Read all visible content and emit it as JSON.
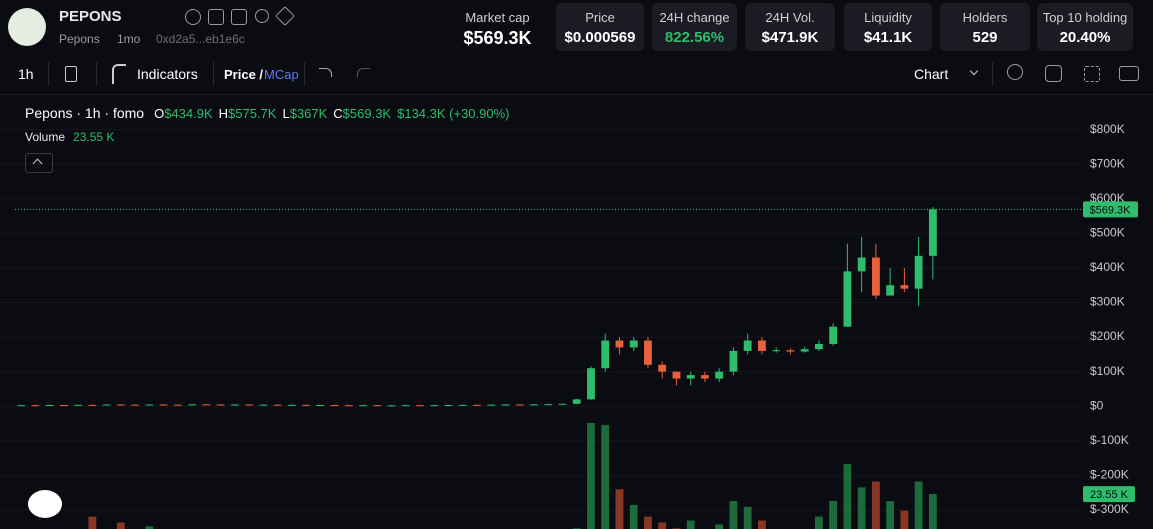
{
  "header": {
    "token": "PEPONS",
    "name": "Pepons",
    "age": "1mo",
    "address": "0xd2a5...eb1e6c",
    "stats": [
      {
        "label": "Market cap",
        "value": "$569.3K"
      },
      {
        "label": "Price",
        "value": "$0.000569"
      },
      {
        "label": "24H change",
        "value": "822.56%"
      },
      {
        "label": "24H Vol.",
        "value": "$471.9K"
      },
      {
        "label": "Liquidity",
        "value": "$41.1K"
      },
      {
        "label": "Holders",
        "value": "529"
      },
      {
        "label": "Top 10 holding",
        "value": "20.40%"
      }
    ]
  },
  "toolbar": {
    "interval": "1h",
    "indicators": "Indicators",
    "price": "Price /",
    "mcap": "MCap",
    "chart": "Chart"
  },
  "chart_data": {
    "type": "candlestick",
    "title": "Pepons · 1h · fomo",
    "readout": [
      {
        "key": "O",
        "value": "$434.9K"
      },
      {
        "key": "H",
        "value": "$575.7K"
      },
      {
        "key": "L",
        "value": "$367K"
      },
      {
        "key": "C",
        "value": "$569.3K"
      }
    ],
    "change": "$134.3K (+30.90%)",
    "volume_title": "Volume",
    "up_color": "#2ebd6b",
    "down_color": "#e8603c",
    "volume_up_color": "#1d6a3a",
    "volume_down_color": "#8a3624",
    "open": [
      2000,
      3000,
      2500,
      3500,
      3000,
      4000,
      3500,
      5000,
      4500,
      4000,
      5000,
      4500,
      4000,
      5500,
      5000,
      4500,
      5000,
      4000,
      4500,
      3500,
      4000,
      3000,
      3500,
      3000,
      2500,
      3000,
      2000,
      2500,
      3000,
      2500,
      3000,
      3500,
      4000,
      3500,
      4500,
      5000,
      4500,
      5500,
      6000,
      7000,
      20000,
      110000,
      190000,
      170000,
      190000,
      120000,
      100000,
      80000,
      90000,
      80000,
      100000,
      160000,
      190000,
      160000,
      162000,
      158000,
      165000,
      180000,
      230000,
      390000,
      430000,
      320000,
      350000,
      340000,
      434900
    ],
    "high": [
      4000,
      4000,
      4500,
      4500,
      5000,
      5000,
      6000,
      6000,
      5500,
      6000,
      6000,
      5500,
      6500,
      6500,
      6000,
      6000,
      6000,
      5500,
      5500,
      5000,
      5000,
      4500,
      4500,
      4000,
      4000,
      4000,
      3500,
      4000,
      4000,
      4000,
      4500,
      5000,
      5000,
      5500,
      6000,
      6000,
      6500,
      7000,
      8000,
      21000,
      115000,
      210000,
      200000,
      200000,
      200000,
      130000,
      100000,
      100000,
      100000,
      110000,
      170000,
      210000,
      200000,
      170000,
      168000,
      172000,
      190000,
      240000,
      470000,
      490000,
      470000,
      400000,
      400000,
      490000,
      575700
    ],
    "low": [
      1000,
      1500,
      1500,
      2000,
      2000,
      2500,
      2500,
      3500,
      3000,
      3000,
      3500,
      3000,
      3000,
      4000,
      3500,
      3500,
      3000,
      3000,
      2500,
      2500,
      2000,
      2000,
      2000,
      1500,
      1500,
      1000,
      1000,
      1500,
      1500,
      1500,
      2000,
      2500,
      2500,
      2500,
      3500,
      3500,
      3500,
      4500,
      5000,
      6000,
      18000,
      100000,
      150000,
      160000,
      110000,
      80000,
      60000,
      60000,
      70000,
      70000,
      90000,
      150000,
      150000,
      155000,
      150000,
      155000,
      160000,
      175000,
      230000,
      330000,
      310000,
      320000,
      330000,
      290000,
      367000
    ],
    "close": [
      3000,
      2500,
      3500,
      3000,
      4000,
      3500,
      5000,
      4500,
      4000,
      5000,
      4500,
      4000,
      5500,
      5000,
      4500,
      5000,
      4000,
      4500,
      3500,
      4000,
      3000,
      3500,
      3000,
      2500,
      3000,
      2000,
      2500,
      3000,
      2500,
      3000,
      3500,
      4000,
      3500,
      4500,
      5000,
      4500,
      5500,
      6000,
      7000,
      20000,
      110000,
      190000,
      170000,
      190000,
      120000,
      100000,
      80000,
      90000,
      80000,
      100000,
      160000,
      190000,
      160000,
      162000,
      158000,
      165000,
      180000,
      230000,
      390000,
      430000,
      320000,
      350000,
      340000,
      434900,
      569300
    ],
    "volume": [
      500,
      800,
      1200,
      600,
      900,
      12000,
      700,
      9000,
      1000,
      7000,
      800,
      600,
      4000,
      900,
      500,
      700,
      600,
      800,
      500,
      2000,
      700,
      600,
      800,
      500,
      700,
      900,
      600,
      800,
      700,
      500,
      600,
      700,
      1000,
      800,
      600,
      900,
      700,
      1200,
      2500,
      6000,
      60000,
      59000,
      26000,
      18000,
      12000,
      9000,
      6000,
      10000,
      5000,
      8000,
      20000,
      17000,
      10000,
      4000,
      3000,
      5000,
      12000,
      20000,
      39000,
      27000,
      30000,
      20000,
      15000,
      30000,
      23550
    ],
    "ylim": [
      -355000,
      900000
    ],
    "yticks": [
      {
        "value": -300000,
        "label": "$-300K"
      },
      {
        "value": -200000,
        "label": "$-200K"
      },
      {
        "value": -100000,
        "label": "$-100K"
      },
      {
        "value": 0,
        "label": "$0"
      },
      {
        "value": 100000,
        "label": "$100K"
      },
      {
        "value": 200000,
        "label": "$200K"
      },
      {
        "value": 300000,
        "label": "$300K"
      },
      {
        "value": 400000,
        "label": "$400K"
      },
      {
        "value": 500000,
        "label": "$500K"
      },
      {
        "value": 600000,
        "label": "$600K"
      },
      {
        "value": 700000,
        "label": "$700K"
      },
      {
        "value": 800000,
        "label": "$800K"
      }
    ],
    "volume_ylim": [
      0,
      80000
    ],
    "last_value": {
      "value": 569300,
      "label": "$569.3K"
    },
    "last_volume": {
      "value": 23550,
      "label": "23.55 K"
    },
    "grid": true
  }
}
